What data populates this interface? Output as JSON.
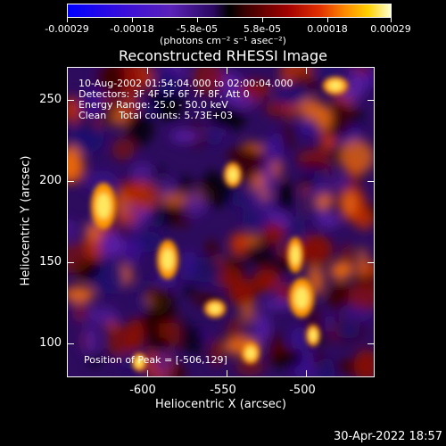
{
  "colorbar": {
    "ticks": [
      "-0.00029",
      "-0.00018",
      "-5.8e-05",
      "5.8e-05",
      "0.00018",
      "0.00029"
    ],
    "units": "(photons cm⁻² s⁻¹ asec⁻²)"
  },
  "title": "Reconstructed RHESSI Image",
  "info": {
    "time_range": "10-Aug-2002 01:54:04.000 to 02:00:04.000",
    "detectors": "Detectors: 3F 4F 5F 6F 7F 8F, Att 0",
    "energy": "Energy Range: 25.0 - 50.0 keV",
    "clean": "Clean    Total counts: 5.73E+03",
    "peak": "Position of Peak = [-506,129]"
  },
  "axes": {
    "xlabel": "Heliocentric X (arcsec)",
    "ylabel": "Heliocentric Y (arcsec)",
    "xticks": [
      "-600",
      "-550",
      "-500"
    ],
    "yticks": [
      "250",
      "200",
      "150",
      "100"
    ]
  },
  "colors": {
    "background": "#000000",
    "axis": "#ffffff"
  },
  "footer": {
    "date": "30-Apr-2022 18:57"
  }
}
